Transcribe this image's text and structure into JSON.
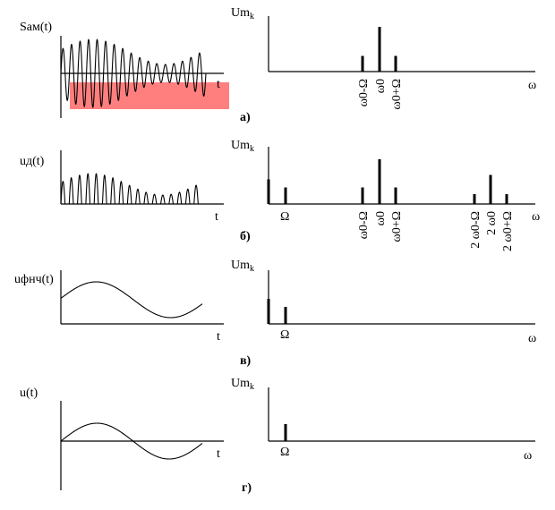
{
  "panels": [
    {
      "caption": "а)",
      "time_ylabel": "Sам(t)",
      "time_xlabel": "t",
      "spec_ylabel_main": "Um",
      "spec_ylabel_sub": "k",
      "spec_xlabel": "ω",
      "highlight_color": "#ff7f7f",
      "spectral_lines": [
        {
          "label": "ω0-Ω",
          "amplitude": 0.35
        },
        {
          "label": "ω0",
          "amplitude": 1.0
        },
        {
          "label": "ω0+Ω",
          "amplitude": 0.35
        }
      ]
    },
    {
      "caption": "б)",
      "time_ylabel": "uд(t)",
      "time_xlabel": "t",
      "spec_ylabel_main": "Um",
      "spec_ylabel_sub": "k",
      "spec_xlabel": "ω",
      "spectral_lines": [
        {
          "label": "",
          "amplitude": 0.55
        },
        {
          "label": "Ω",
          "amplitude": 0.37
        },
        {
          "label": "ω0-Ω",
          "amplitude": 0.37
        },
        {
          "label": "ω0",
          "amplitude": 1.0
        },
        {
          "label": "ω0+Ω",
          "amplitude": 0.37
        },
        {
          "label": "2 ω0-Ω",
          "amplitude": 0.22
        },
        {
          "label": "2 ω0",
          "amplitude": 0.65
        },
        {
          "label": "2 ω0+Ω",
          "amplitude": 0.22
        }
      ]
    },
    {
      "caption": "в)",
      "time_ylabel": "uфнч(t)",
      "time_xlabel": "t",
      "spec_ylabel_main": "Um",
      "spec_ylabel_sub": "k",
      "spec_xlabel": "ω",
      "spectral_lines": [
        {
          "label": "",
          "amplitude": 1.0
        },
        {
          "label": "Ω",
          "amplitude": 0.68
        }
      ]
    },
    {
      "caption": "г)",
      "time_ylabel": "u(t)",
      "time_xlabel": "t",
      "spec_ylabel_main": "Um",
      "spec_ylabel_sub": "k",
      "spec_xlabel": "ω",
      "spectral_lines": [
        {
          "label": "Ω",
          "amplitude": 1.0
        }
      ]
    }
  ]
}
